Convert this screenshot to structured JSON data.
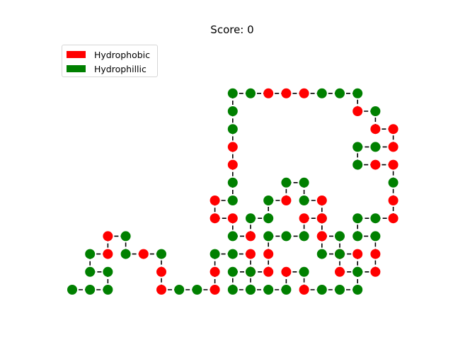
{
  "title": "Score: 0",
  "legend": [
    {
      "label": "Hydrophobic",
      "color": "#ff0000"
    },
    {
      "label": "Hydrophillic",
      "color": "#008000"
    }
  ],
  "chain_color": "#000000",
  "colors": {
    "H": "#ff0000",
    "P": "#008000"
  },
  "chain": [
    {
      "x": 0,
      "y": 0,
      "t": "P"
    },
    {
      "x": 1,
      "y": 0,
      "t": "P"
    },
    {
      "x": 2,
      "y": 0,
      "t": "P"
    },
    {
      "x": 2,
      "y": 1,
      "t": "P"
    },
    {
      "x": 1,
      "y": 1,
      "t": "P"
    },
    {
      "x": 1,
      "y": 2,
      "t": "P"
    },
    {
      "x": 2,
      "y": 2,
      "t": "H"
    },
    {
      "x": 2,
      "y": 3,
      "t": "H"
    },
    {
      "x": 3,
      "y": 3,
      "t": "P"
    },
    {
      "x": 3,
      "y": 2,
      "t": "P"
    },
    {
      "x": 4,
      "y": 2,
      "t": "H"
    },
    {
      "x": 5,
      "y": 2,
      "t": "P"
    },
    {
      "x": 5,
      "y": 1,
      "t": "H"
    },
    {
      "x": 5,
      "y": 0,
      "t": "H"
    },
    {
      "x": 6,
      "y": 0,
      "t": "P"
    },
    {
      "x": 7,
      "y": 0,
      "t": "P"
    },
    {
      "x": 8,
      "y": 0,
      "t": "H"
    },
    {
      "x": 8,
      "y": 1,
      "t": "H"
    },
    {
      "x": 8,
      "y": 2,
      "t": "P"
    },
    {
      "x": 9,
      "y": 2,
      "t": "P"
    },
    {
      "x": 10,
      "y": 2,
      "t": "H"
    },
    {
      "x": 10,
      "y": 1,
      "t": "H"
    },
    {
      "x": 9,
      "y": 1,
      "t": "P"
    },
    {
      "x": 9,
      "y": 0,
      "t": "P"
    },
    {
      "x": 10,
      "y": 0,
      "t": "P"
    },
    {
      "x": 11,
      "y": 0,
      "t": "P"
    },
    {
      "x": 12,
      "y": 0,
      "t": "P"
    },
    {
      "x": 12,
      "y": 1,
      "t": "H"
    },
    {
      "x": 13,
      "y": 1,
      "t": "P"
    },
    {
      "x": 13,
      "y": 0,
      "t": "H"
    },
    {
      "x": 14,
      "y": 0,
      "t": "P"
    },
    {
      "x": 15,
      "y": 0,
      "t": "P"
    },
    {
      "x": 16,
      "y": 0,
      "t": "P"
    },
    {
      "x": 16,
      "y": 1,
      "t": "P"
    },
    {
      "x": 15,
      "y": 1,
      "t": "H"
    },
    {
      "x": 15,
      "y": 2,
      "t": "H"
    },
    {
      "x": 15,
      "y": 3,
      "t": "P"
    },
    {
      "x": 14,
      "y": 3,
      "t": "H"
    },
    {
      "x": 14,
      "y": 4,
      "t": "P"
    },
    {
      "x": 14,
      "y": 5,
      "t": "H"
    },
    {
      "x": 13,
      "y": 5,
      "t": "P"
    },
    {
      "x": 13,
      "y": 6,
      "t": "P"
    },
    {
      "x": 12,
      "y": 6,
      "t": "P"
    },
    {
      "x": 12,
      "y": 5,
      "t": "H"
    },
    {
      "x": 11,
      "y": 5,
      "t": "P"
    },
    {
      "x": 11,
      "y": 4,
      "t": "P"
    },
    {
      "x": 10,
      "y": 4,
      "t": "P"
    },
    {
      "x": 10,
      "y": 3,
      "t": "H"
    },
    {
      "x": 9,
      "y": 3,
      "t": "P"
    },
    {
      "x": 9,
      "y": 4,
      "t": "H"
    },
    {
      "x": 8,
      "y": 4,
      "t": "H"
    },
    {
      "x": 8,
      "y": 5,
      "t": "H"
    },
    {
      "x": 9,
      "y": 5,
      "t": "P"
    },
    {
      "x": 9,
      "y": 6,
      "t": "P"
    },
    {
      "x": 9,
      "y": 7,
      "t": "H"
    },
    {
      "x": 9,
      "y": 8,
      "t": "H"
    },
    {
      "x": 9,
      "y": 9,
      "t": "P"
    },
    {
      "x": 9,
      "y": 10,
      "t": "P"
    },
    {
      "x": 9,
      "y": 11,
      "t": "P"
    },
    {
      "x": 10,
      "y": 11,
      "t": "P"
    },
    {
      "x": 11,
      "y": 11,
      "t": "H"
    },
    {
      "x": 12,
      "y": 11,
      "t": "H"
    },
    {
      "x": 13,
      "y": 11,
      "t": "H"
    },
    {
      "x": 14,
      "y": 11,
      "t": "P"
    },
    {
      "x": 15,
      "y": 11,
      "t": "P"
    },
    {
      "x": 16,
      "y": 11,
      "t": "P"
    },
    {
      "x": 16,
      "y": 10,
      "t": "H"
    },
    {
      "x": 17,
      "y": 10,
      "t": "P"
    },
    {
      "x": 17,
      "y": 9,
      "t": "H"
    },
    {
      "x": 18,
      "y": 9,
      "t": "H"
    },
    {
      "x": 18,
      "y": 8,
      "t": "H"
    },
    {
      "x": 17,
      "y": 8,
      "t": "P"
    },
    {
      "x": 16,
      "y": 8,
      "t": "P"
    },
    {
      "x": 16,
      "y": 7,
      "t": "P"
    },
    {
      "x": 17,
      "y": 7,
      "t": "H"
    },
    {
      "x": 18,
      "y": 7,
      "t": "H"
    },
    {
      "x": 18,
      "y": 6,
      "t": "P"
    },
    {
      "x": 18,
      "y": 5,
      "t": "H"
    },
    {
      "x": 18,
      "y": 4,
      "t": "H"
    },
    {
      "x": 17,
      "y": 4,
      "t": "P"
    },
    {
      "x": 16,
      "y": 4,
      "t": "P"
    },
    {
      "x": 16,
      "y": 3,
      "t": "P"
    },
    {
      "x": 17,
      "y": 3,
      "t": "P"
    },
    {
      "x": 17,
      "y": 2,
      "t": "H"
    },
    {
      "x": 17,
      "y": 1,
      "t": "H"
    },
    {
      "x": 16,
      "y": 1,
      "t": "P"
    },
    {
      "x": 16,
      "y": 2,
      "t": "H"
    },
    {
      "x": 15,
      "y": 2,
      "t": "P"
    },
    {
      "x": 14,
      "y": 2,
      "t": "P"
    },
    {
      "x": 14,
      "y": 3,
      "t": "H"
    },
    {
      "x": 14,
      "y": 4,
      "t": "H"
    },
    {
      "x": 13,
      "y": 4,
      "t": "H"
    },
    {
      "x": 13,
      "y": 3,
      "t": "P"
    },
    {
      "x": 12,
      "y": 3,
      "t": "P"
    },
    {
      "x": 11,
      "y": 3,
      "t": "P"
    },
    {
      "x": 11,
      "y": 2,
      "t": "H"
    },
    {
      "x": 11,
      "y": 1,
      "t": "H"
    },
    {
      "x": 10,
      "y": 1,
      "t": "P"
    },
    {
      "x": 10,
      "y": 0,
      "t": "P"
    }
  ]
}
